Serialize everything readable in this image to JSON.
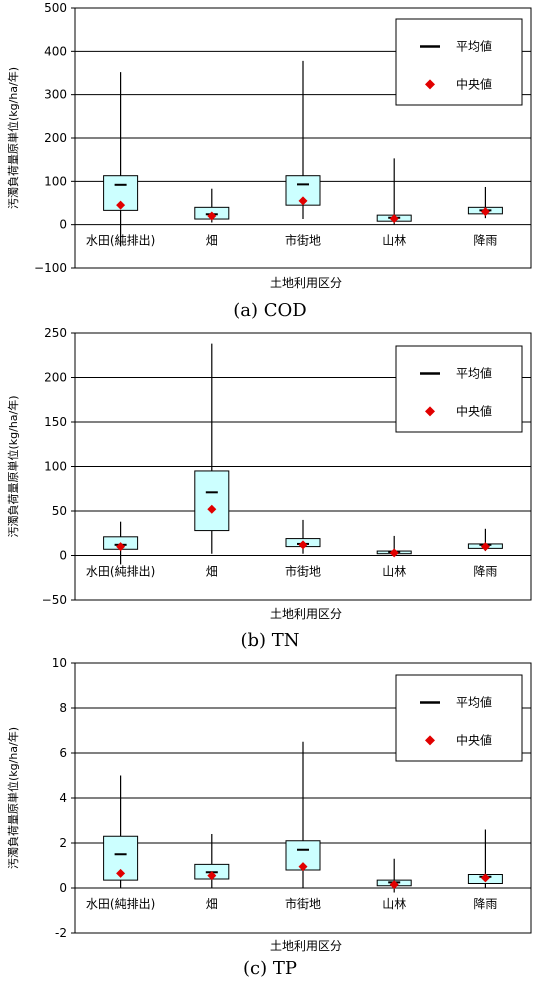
{
  "chart_data": [
    {
      "type": "boxplot",
      "caption": "(a) COD",
      "xlabel": "土地利用区分",
      "ylabel": "汚濁負荷量原単位(kg/ha/年)",
      "ylim": [
        -100,
        500
      ],
      "yticks": [
        "500",
        "400",
        "300",
        "200",
        "100",
        "0",
        "−100"
      ],
      "categories": [
        "水田(純排出)",
        "畑",
        "市街地",
        "山林",
        "降雨"
      ],
      "legend": {
        "mean_label": "平均値",
        "median_label": "中央値",
        "position": "top-right"
      },
      "boxes": [
        {
          "min": -50,
          "q1": 33,
          "q3": 113,
          "max": 352,
          "mean": 92,
          "median": 45
        },
        {
          "min": 5,
          "q1": 13,
          "q3": 40,
          "max": 83,
          "mean": 24,
          "median": 20
        },
        {
          "min": 13,
          "q1": 45,
          "q3": 113,
          "max": 378,
          "mean": 93,
          "median": 55
        },
        {
          "min": 0,
          "q1": 8,
          "q3": 22,
          "max": 153,
          "mean": 16,
          "median": 14
        },
        {
          "min": 15,
          "q1": 25,
          "q3": 40,
          "max": 87,
          "mean": 33,
          "median": 30
        }
      ]
    },
    {
      "type": "boxplot",
      "caption": "(b) TN",
      "xlabel": "土地利用区分",
      "ylabel": "汚濁負荷量原単位(kg/ha/年)",
      "ylim": [
        -50,
        250
      ],
      "yticks": [
        "250",
        "200",
        "150",
        "100",
        "50",
        "0",
        "−50"
      ],
      "categories": [
        "水田(純排出)",
        "畑",
        "市街地",
        "山林",
        "降雨"
      ],
      "legend": {
        "mean_label": "平均値",
        "median_label": "中央値",
        "position": "top-right"
      },
      "boxes": [
        {
          "min": -10,
          "q1": 7,
          "q3": 21,
          "max": 38,
          "mean": 12,
          "median": 10
        },
        {
          "min": 2,
          "q1": 28,
          "q3": 95,
          "max": 238,
          "mean": 71,
          "median": 52
        },
        {
          "min": 2,
          "q1": 10,
          "q3": 19,
          "max": 40,
          "mean": 13,
          "median": 12
        },
        {
          "min": 0,
          "q1": 2,
          "q3": 5,
          "max": 22,
          "mean": 4,
          "median": 3
        },
        {
          "min": 5,
          "q1": 8,
          "q3": 13,
          "max": 30,
          "mean": 12,
          "median": 10
        }
      ]
    },
    {
      "type": "boxplot",
      "caption": "(c) TP",
      "xlabel": "土地利用区分",
      "ylabel": "汚濁負荷量原単位(kg/ha/年)",
      "ylim": [
        -2,
        10
      ],
      "yticks": [
        "10",
        "8",
        "6",
        "4",
        "2",
        "0",
        "-2"
      ],
      "categories": [
        "水田(純排出)",
        "畑",
        "市街地",
        "山林",
        "降雨"
      ],
      "legend": {
        "mean_label": "平均値",
        "median_label": "中央値",
        "position": "top-right"
      },
      "boxes": [
        {
          "min": 0,
          "q1": 0.35,
          "q3": 2.3,
          "max": 5.0,
          "mean": 1.5,
          "median": 0.65
        },
        {
          "min": 0,
          "q1": 0.4,
          "q3": 1.05,
          "max": 2.4,
          "mean": 0.7,
          "median": 0.55
        },
        {
          "min": 0,
          "q1": 0.8,
          "q3": 2.1,
          "max": 6.5,
          "mean": 1.7,
          "median": 0.95
        },
        {
          "min": -0.2,
          "q1": 0.1,
          "q3": 0.35,
          "max": 1.3,
          "mean": 0.25,
          "median": 0.15
        },
        {
          "min": 0,
          "q1": 0.2,
          "q3": 0.6,
          "max": 2.6,
          "mean": 0.5,
          "median": 0.45
        }
      ]
    }
  ],
  "colors": {
    "box_fill": "#ccffff",
    "median_marker": "#e10000",
    "line": "#000000",
    "grid": "#000000"
  }
}
